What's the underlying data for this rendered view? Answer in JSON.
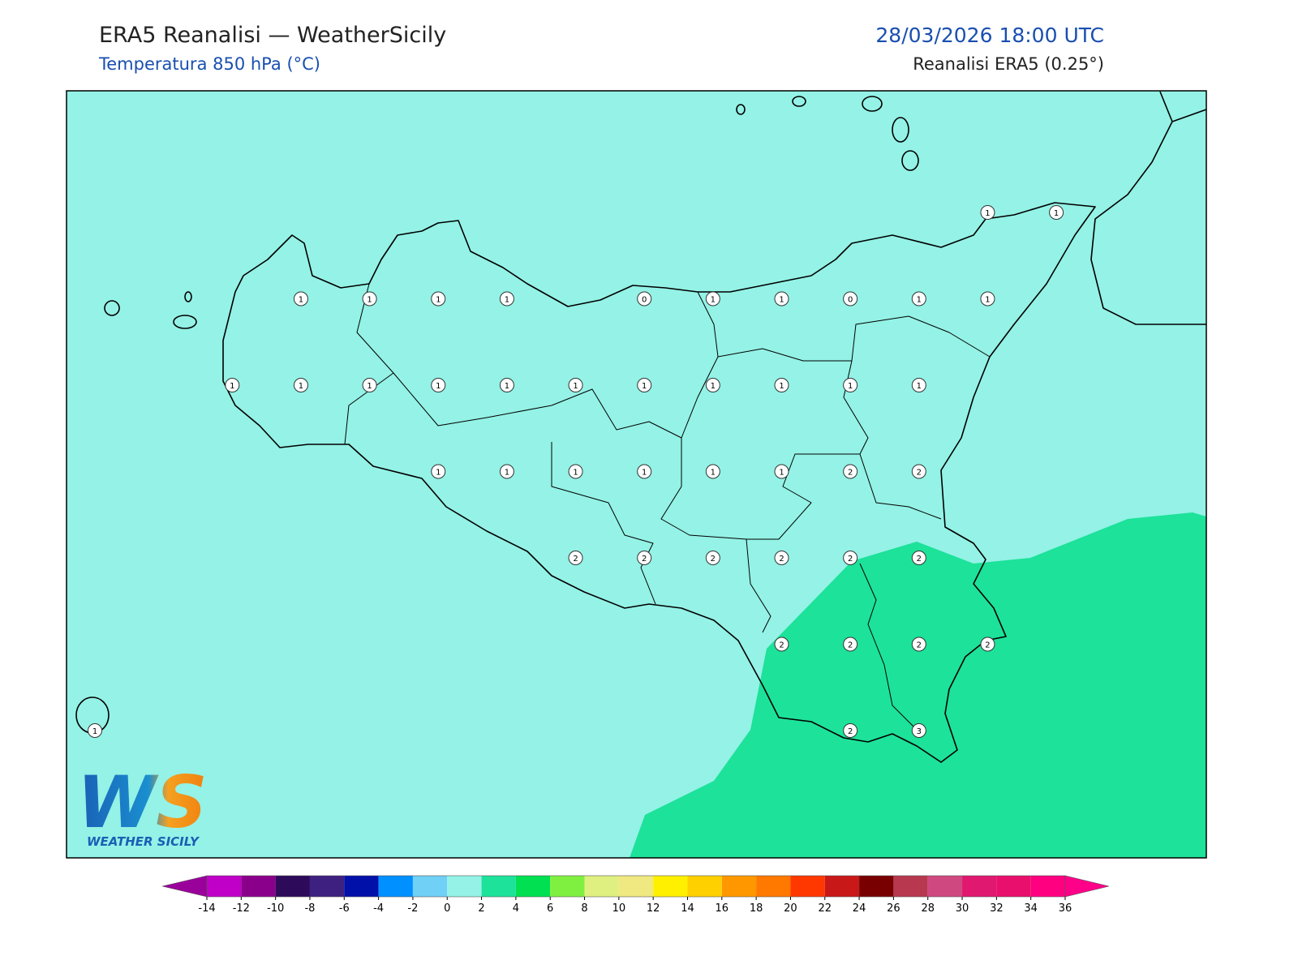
{
  "header": {
    "title": "ERA5 Reanalisi — WeatherSicily",
    "subtitle": "Temperatura 850 hPa (°C)",
    "datetime": "28/03/2026 18:00 UTC",
    "source": "Reanalisi ERA5 (0.25°)"
  },
  "logo": {
    "mark": "WS",
    "name": "WEATHER SICILY"
  },
  "grid_values": [
    [
      null,
      null,
      null,
      null,
      null,
      null,
      null,
      null,
      null,
      null,
      null,
      null,
      null,
      1,
      1
    ],
    [
      null,
      null,
      null,
      1,
      1,
      1,
      1,
      null,
      0,
      1,
      1,
      0,
      1,
      1,
      null
    ],
    [
      null,
      null,
      1,
      1,
      1,
      1,
      1,
      1,
      1,
      1,
      1,
      1,
      1,
      null,
      null
    ],
    [
      null,
      null,
      null,
      null,
      null,
      1,
      1,
      1,
      1,
      1,
      1,
      2,
      2,
      null,
      null
    ],
    [
      null,
      null,
      null,
      null,
      null,
      null,
      null,
      2,
      2,
      2,
      2,
      2,
      2,
      null,
      null
    ],
    [
      null,
      null,
      null,
      null,
      null,
      null,
      null,
      null,
      null,
      null,
      2,
      2,
      2,
      2,
      null
    ],
    [
      1,
      null,
      null,
      null,
      null,
      null,
      null,
      null,
      null,
      null,
      null,
      2,
      3,
      null,
      null
    ]
  ],
  "colorbar": {
    "ticks": [
      -14,
      -12,
      -10,
      -8,
      -6,
      -4,
      -2,
      0,
      2,
      4,
      6,
      8,
      10,
      12,
      14,
      16,
      18,
      20,
      22,
      24,
      26,
      28,
      30,
      32,
      34,
      36
    ],
    "colors": [
      "#c000c8",
      "#8b008b",
      "#2d0a5a",
      "#3d2080",
      "#0010a8",
      "#0090ff",
      "#70d0f5",
      "#94f2e6",
      "#1de29a",
      "#00e050",
      "#80f040",
      "#e0f080",
      "#f0e880",
      "#fff000",
      "#ffd000",
      "#ff9800",
      "#ff7800",
      "#ff3800",
      "#c81818",
      "#780000",
      "#b83850",
      "#d04880",
      "#e01870",
      "#e8106c",
      "#ff0080"
    ],
    "under_color": "#9a009a",
    "over_color": "#ff0088"
  }
}
